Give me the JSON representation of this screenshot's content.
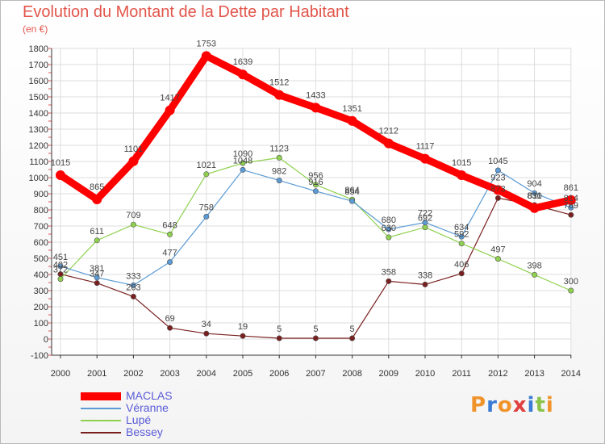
{
  "header": {
    "title": "Evolution du Montant de la Dette par Habitant",
    "subtitle": "(en €)"
  },
  "logo": {
    "text": "Proxiti",
    "colors": [
      "#f0932b",
      "#3a7bd5",
      "#f0932b",
      "#e04040",
      "#3a7bd5",
      "#8bc34a",
      "#f0932b"
    ]
  },
  "chart_data": {
    "type": "line",
    "x": [
      2000,
      2001,
      2002,
      2003,
      2004,
      2005,
      2006,
      2007,
      2008,
      2009,
      2010,
      2011,
      2012,
      2013,
      2014
    ],
    "ylim": [
      -100,
      1800
    ],
    "yticks": [
      -100,
      0,
      100,
      200,
      300,
      400,
      500,
      600,
      700,
      800,
      900,
      1000,
      1100,
      1200,
      1300,
      1400,
      1500,
      1600,
      1700,
      1800
    ],
    "grid": true,
    "legend_position": "bottom-left",
    "series": [
      {
        "name": "MACLAS",
        "color": "#ff0000",
        "values": [
          1015,
          865,
          1101,
          1417,
          1753,
          1639,
          1512,
          1433,
          1351,
          1212,
          1117,
          1015,
          923,
          811,
          861
        ]
      },
      {
        "name": "Véranne",
        "color": "#5b9bd5",
        "values": [
          451,
          381,
          333,
          477,
          758,
          1048,
          982,
          916,
          854,
          680,
          722,
          634,
          1045,
          904,
          814
        ]
      },
      {
        "name": "Lupé",
        "color": "#8fd14f",
        "values": [
          372,
          611,
          709,
          648,
          1021,
          1090,
          1123,
          956,
          864,
          630,
          692,
          592,
          497,
          398,
          300
        ]
      },
      {
        "name": "Bessey",
        "color": "#7a1f1f",
        "values": [
          402,
          347,
          263,
          69,
          34,
          19,
          5,
          5,
          5,
          358,
          338,
          406,
          873,
          830,
          769
        ]
      }
    ],
    "data_labels": [
      [
        "1015",
        "865",
        "1101",
        "1417",
        "1753",
        "1639",
        "1512",
        "1433",
        "1351",
        "1212",
        "1117",
        "1015",
        "923",
        "811",
        "861"
      ],
      [
        "451",
        "381",
        "333",
        "477",
        "758",
        "1048",
        "982",
        "916",
        "854",
        "680",
        "722",
        "634",
        "1045",
        "904",
        "814"
      ],
      [
        "372",
        "611",
        "709",
        "648",
        "1021",
        "1090",
        "1123",
        "956",
        "864",
        "630",
        "692",
        "592",
        "497",
        "398",
        "300"
      ],
      [
        "402",
        "347",
        "263",
        "69",
        "34",
        "19",
        "5",
        "5",
        "5",
        "358",
        "338",
        "406",
        "873",
        "830",
        "769"
      ]
    ]
  }
}
